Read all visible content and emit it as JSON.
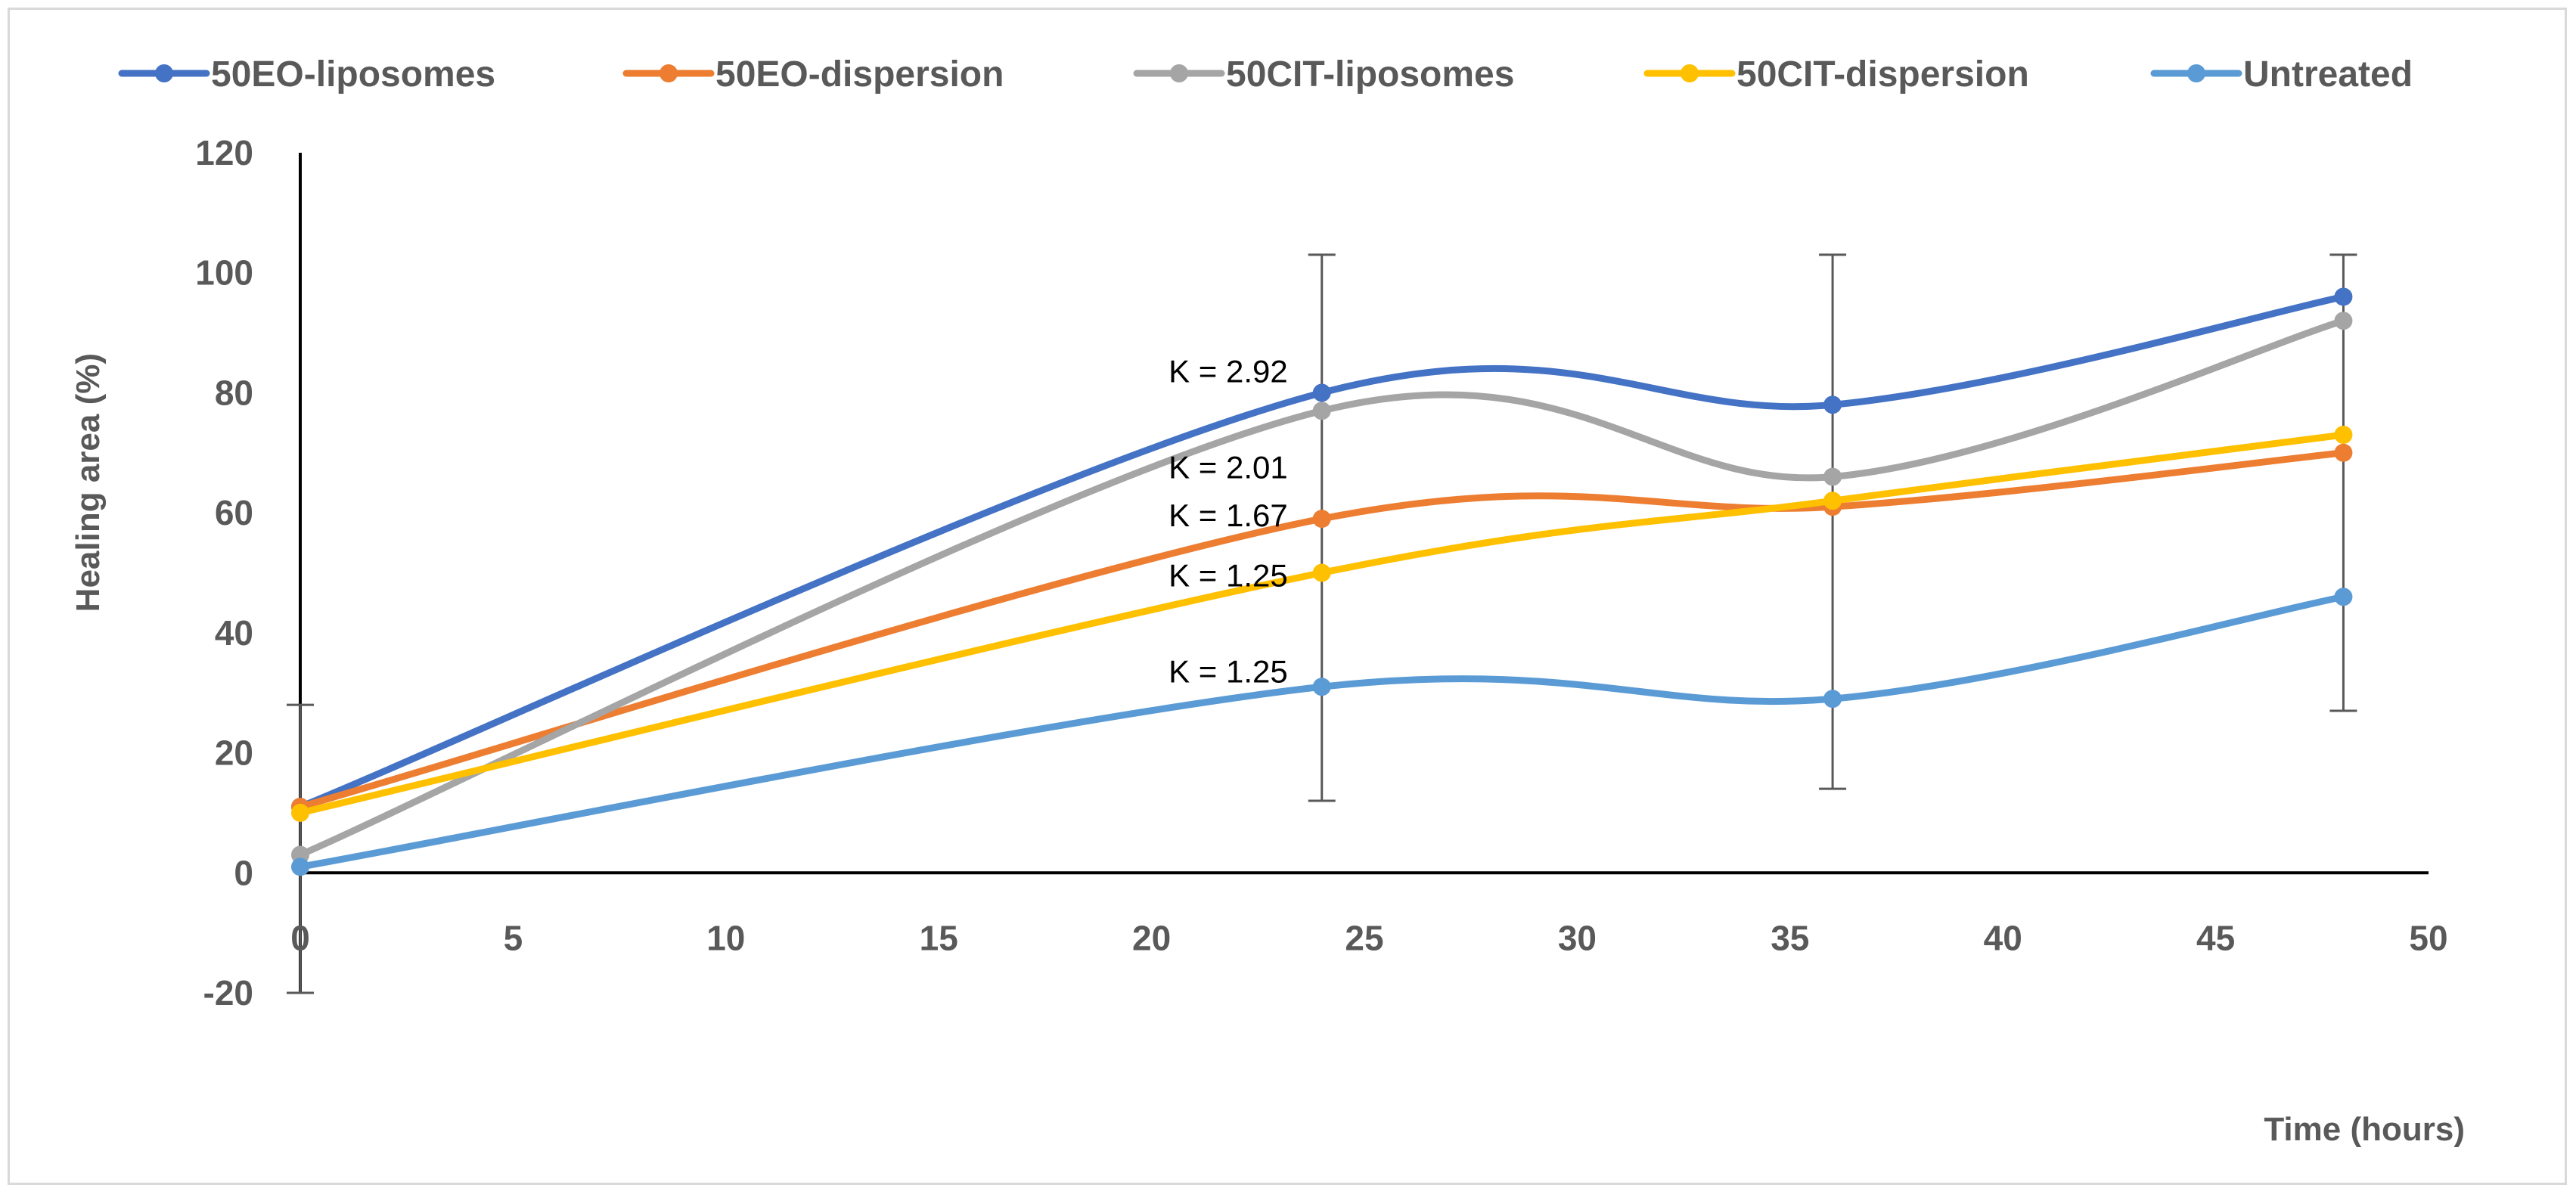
{
  "chart_data": {
    "type": "line",
    "title": "",
    "xlabel": "Time (hours)",
    "ylabel": "Healing area (%)",
    "xlim": [
      0,
      50
    ],
    "ylim": [
      -20,
      120
    ],
    "xticks": [
      0,
      5,
      10,
      15,
      20,
      25,
      30,
      35,
      40,
      45,
      50
    ],
    "yticks": [
      -20,
      0,
      20,
      40,
      60,
      80,
      100,
      120
    ],
    "grid": false,
    "legend_position": "top",
    "smooth": true,
    "series": [
      {
        "name": "50EO-liposomes",
        "color": "#4472c4",
        "x": [
          0,
          24,
          36,
          48
        ],
        "y": [
          11,
          80,
          78,
          96
        ]
      },
      {
        "name": "50EO-dispersion",
        "color": "#ed7d31",
        "x": [
          0,
          24,
          36,
          48
        ],
        "y": [
          11,
          59,
          61,
          70
        ]
      },
      {
        "name": "50CIT-liposomes",
        "color": "#a5a5a5",
        "x": [
          0,
          24,
          36,
          48
        ],
        "y": [
          3,
          77,
          66,
          92
        ]
      },
      {
        "name": "50CIT-dispersion",
        "color": "#ffc000",
        "x": [
          0,
          24,
          36,
          48
        ],
        "y": [
          10,
          50,
          62,
          73
        ]
      },
      {
        "name": "Untreated",
        "color": "#5b9bd5",
        "x": [
          0,
          24,
          36,
          48
        ],
        "y": [
          1,
          31,
          29,
          46
        ]
      }
    ],
    "error_bars": [
      {
        "x": 0,
        "low": -20,
        "high": 28
      },
      {
        "x": 24,
        "low": 12,
        "high": 103
      },
      {
        "x": 36,
        "low": 14,
        "high": 103
      },
      {
        "x": 48,
        "low": 27,
        "high": 103
      }
    ],
    "annotations": [
      {
        "text": "K = 2.92",
        "x": 21.8,
        "y": 83.5
      },
      {
        "text": "K = 2.01",
        "x": 21.8,
        "y": 67.5
      },
      {
        "text": "K = 1.67",
        "x": 21.8,
        "y": 59.5
      },
      {
        "text": "K = 1.25",
        "x": 21.8,
        "y": 49.5
      },
      {
        "text": "K = 1.25",
        "x": 21.8,
        "y": 33.5
      }
    ]
  }
}
